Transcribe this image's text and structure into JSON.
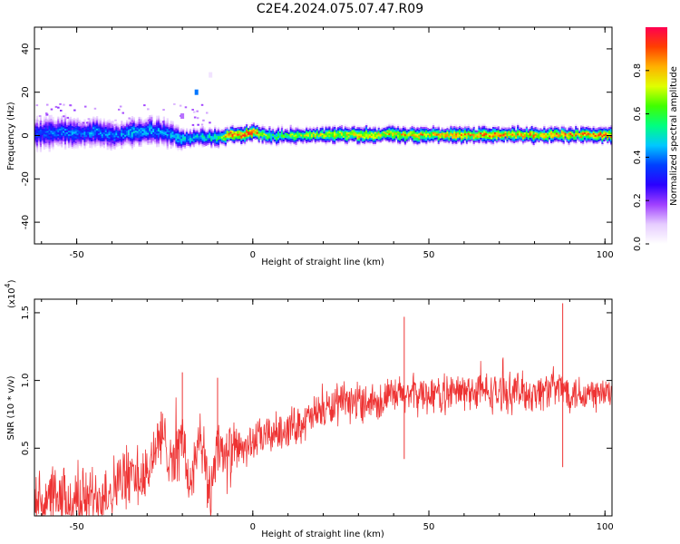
{
  "title": "C2E4.2024.075.07.47.R09",
  "chart_data": [
    {
      "type": "heatmap",
      "xlabel": "Height of straight line (km)",
      "ylabel": "Frequency (Hz)",
      "xlim": [
        -62,
        102
      ],
      "ylim": [
        -50,
        50
      ],
      "xticks": [
        -50,
        0,
        50,
        100
      ],
      "yticks": [
        -40,
        -20,
        0,
        20,
        40
      ],
      "grid": false,
      "colorbar": {
        "label": "Normalized spectral amplitude",
        "ticks": [
          "0.0",
          "0.2",
          "0.4",
          "0.6",
          "0.8"
        ],
        "range": [
          0,
          1
        ],
        "colormap": [
          "#ffffff",
          "#e6ccff",
          "#a040ff",
          "#2a00ff",
          "#0040ff",
          "#00c8ff",
          "#00ff80",
          "#40ff00",
          "#e0ff00",
          "#ffb000",
          "#ff4000",
          "#ff0050"
        ]
      },
      "ridge_frequency_profile": {
        "x": [
          -62,
          -55,
          -50,
          -45,
          -40,
          -35,
          -30,
          -25,
          -20,
          -15,
          -10,
          -7,
          -3,
          0,
          5,
          10,
          20,
          30,
          40,
          50,
          60,
          70,
          80,
          90,
          100
        ],
        "center_hz": [
          0.5,
          1.5,
          0.5,
          1.5,
          -0.5,
          1,
          2,
          1,
          -2,
          -1,
          -1.5,
          0,
          0,
          1,
          -0.5,
          -0.5,
          0,
          0,
          0,
          0,
          0,
          0,
          0,
          0,
          0
        ],
        "peak_amplitude": [
          0.35,
          0.4,
          0.4,
          0.42,
          0.4,
          0.45,
          0.45,
          0.42,
          0.5,
          0.5,
          0.55,
          0.9,
          0.92,
          0.9,
          0.6,
          0.65,
          0.75,
          0.8,
          0.8,
          0.82,
          0.82,
          0.85,
          0.85,
          0.85,
          0.85
        ],
        "spread_hz": [
          6,
          6,
          5.5,
          5.5,
          5,
          5.5,
          5,
          5,
          3.5,
          3.5,
          3.5,
          3,
          3,
          3,
          3,
          3,
          3,
          3,
          3,
          3,
          3,
          3,
          3,
          3,
          3
        ]
      },
      "outliers": [
        {
          "x": -16,
          "y": 20,
          "amplitude": 0.4
        },
        {
          "x": -20,
          "y": 9,
          "amplitude": 0.15
        },
        {
          "x": -12,
          "y": 28,
          "amplitude": 0.05
        }
      ]
    },
    {
      "type": "line",
      "xlabel": "Height of straight line (km)",
      "ylabel": "SNR (10 * v/v)",
      "yscale_label": "(x10",
      "yscale_exp": "4",
      "xlim": [
        -62,
        102
      ],
      "ylim": [
        0,
        1.6
      ],
      "xticks": [
        -50,
        0,
        50,
        100
      ],
      "yticks": [
        0.5,
        1.0,
        1.5
      ],
      "ytick_labels": [
        "0.5",
        "1.0",
        "1.5"
      ],
      "grid": false,
      "series": [
        {
          "color": "#ee3333",
          "x": [
            -62,
            -55,
            -50,
            -45,
            -42,
            -38,
            -35,
            -30,
            -28,
            -25,
            -22,
            -20,
            -18,
            -15,
            -12,
            -10,
            -8,
            -5,
            -2,
            0,
            5,
            10,
            15,
            20,
            25,
            30,
            35,
            40,
            45,
            50,
            55,
            60,
            65,
            70,
            75,
            80,
            85,
            90,
            95,
            102
          ],
          "values": [
            0.12,
            0.1,
            0.12,
            0.14,
            0.17,
            0.25,
            0.3,
            0.27,
            0.5,
            0.55,
            0.4,
            0.6,
            0.2,
            0.55,
            0.15,
            0.6,
            0.4,
            0.5,
            0.5,
            0.55,
            0.6,
            0.65,
            0.7,
            0.78,
            0.82,
            0.85,
            0.85,
            0.88,
            0.9,
            0.9,
            0.9,
            0.92,
            0.92,
            0.9,
            0.92,
            0.9,
            0.95,
            0.92,
            0.9,
            0.9
          ]
        }
      ],
      "highlights": [
        {
          "x": -26,
          "y": 0.77
        },
        {
          "x": -20,
          "y": 1.06
        },
        {
          "x": -10,
          "y": 1.02
        },
        {
          "x": 43,
          "y": 1.47
        },
        {
          "x": 43,
          "y": 0.42
        },
        {
          "x": 88,
          "y": 1.57
        },
        {
          "x": 88,
          "y": 0.36
        }
      ]
    }
  ]
}
